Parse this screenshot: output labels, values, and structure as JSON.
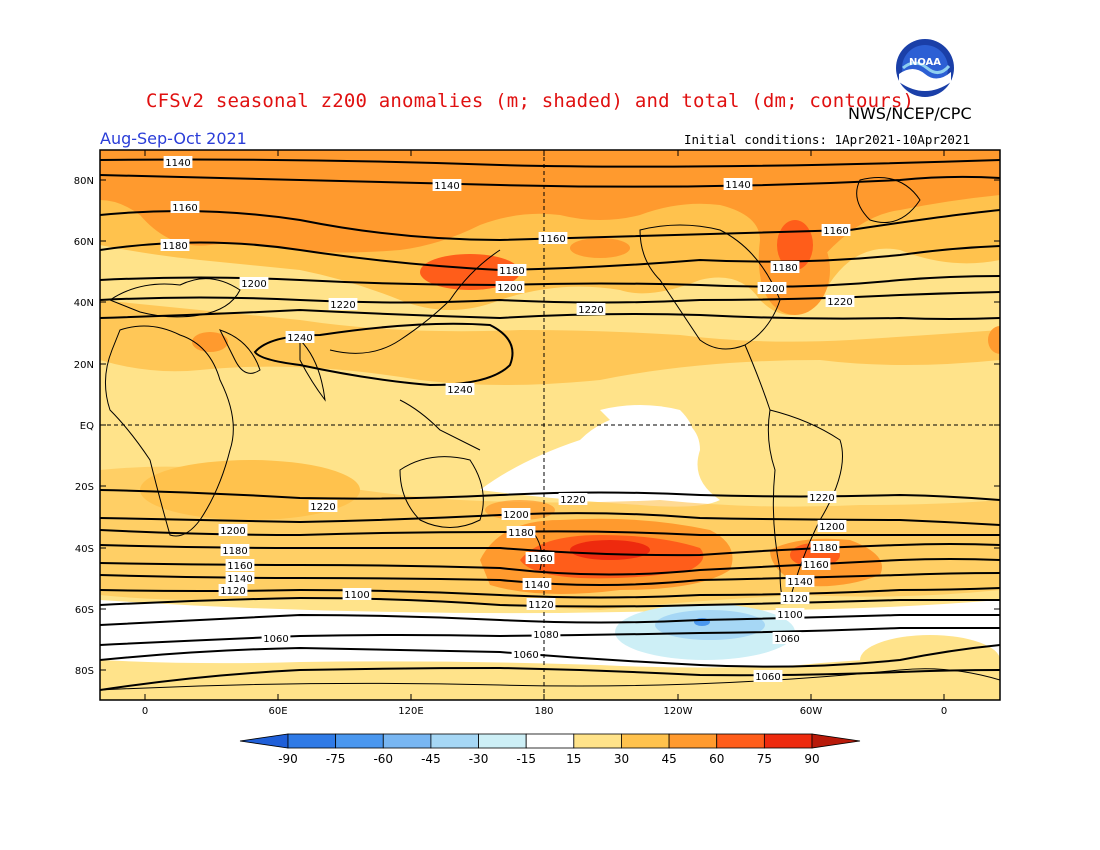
{
  "header": {
    "title": "CFSv2 seasonal z200 anomalies (m; shaded) and total (dm; contours)",
    "agency": "NWS/NCEP/CPC",
    "season": "Aug-Sep-Oct 2021",
    "initial_conditions": "Initial conditions: 1Apr2021-10Apr2021"
  },
  "logo": {
    "icon": "noaa-logo",
    "text": "NOAA"
  },
  "map": {
    "lat_labels": [
      "80N",
      "60N",
      "40N",
      "20N",
      "EQ",
      "20S",
      "40S",
      "60S",
      "80S"
    ],
    "lon_labels": [
      "0",
      "60E",
      "120E",
      "180",
      "120W",
      "60W",
      "0"
    ]
  },
  "colorbar": {
    "labels": [
      "-90",
      "-75",
      "-60",
      "-45",
      "-30",
      "-15",
      "15",
      "30",
      "45",
      "60",
      "75",
      "90"
    ],
    "colors": [
      "#1f5fd8",
      "#2f7ae6",
      "#4a97ef",
      "#78b6f2",
      "#a6d7f5",
      "#cdeff6",
      "#ffffff",
      "#ffe38a",
      "#ffc24d",
      "#ff9a2e",
      "#ff5d1a",
      "#ee2a0e",
      "#b81a0a"
    ]
  },
  "chart_data": {
    "type": "heatmap",
    "variable": "z200",
    "units_shaded": "m",
    "units_contours": "dm",
    "contour_labels": [
      "1140",
      "1140",
      "1140",
      "1160",
      "1160",
      "1160",
      "1180",
      "1180",
      "1180",
      "1200",
      "1200",
      "1200",
      "1220",
      "1220",
      "1220",
      "1240",
      "1240",
      "1220",
      "1220",
      "1220",
      "1200",
      "1200",
      "1200",
      "1180",
      "1180",
      "1180",
      "1160",
      "1160",
      "1160",
      "1140",
      "1140",
      "1140",
      "1120",
      "1120",
      "1120",
      "1100",
      "1100",
      "1080",
      "1060",
      "1060",
      "1060",
      "1060"
    ]
  }
}
